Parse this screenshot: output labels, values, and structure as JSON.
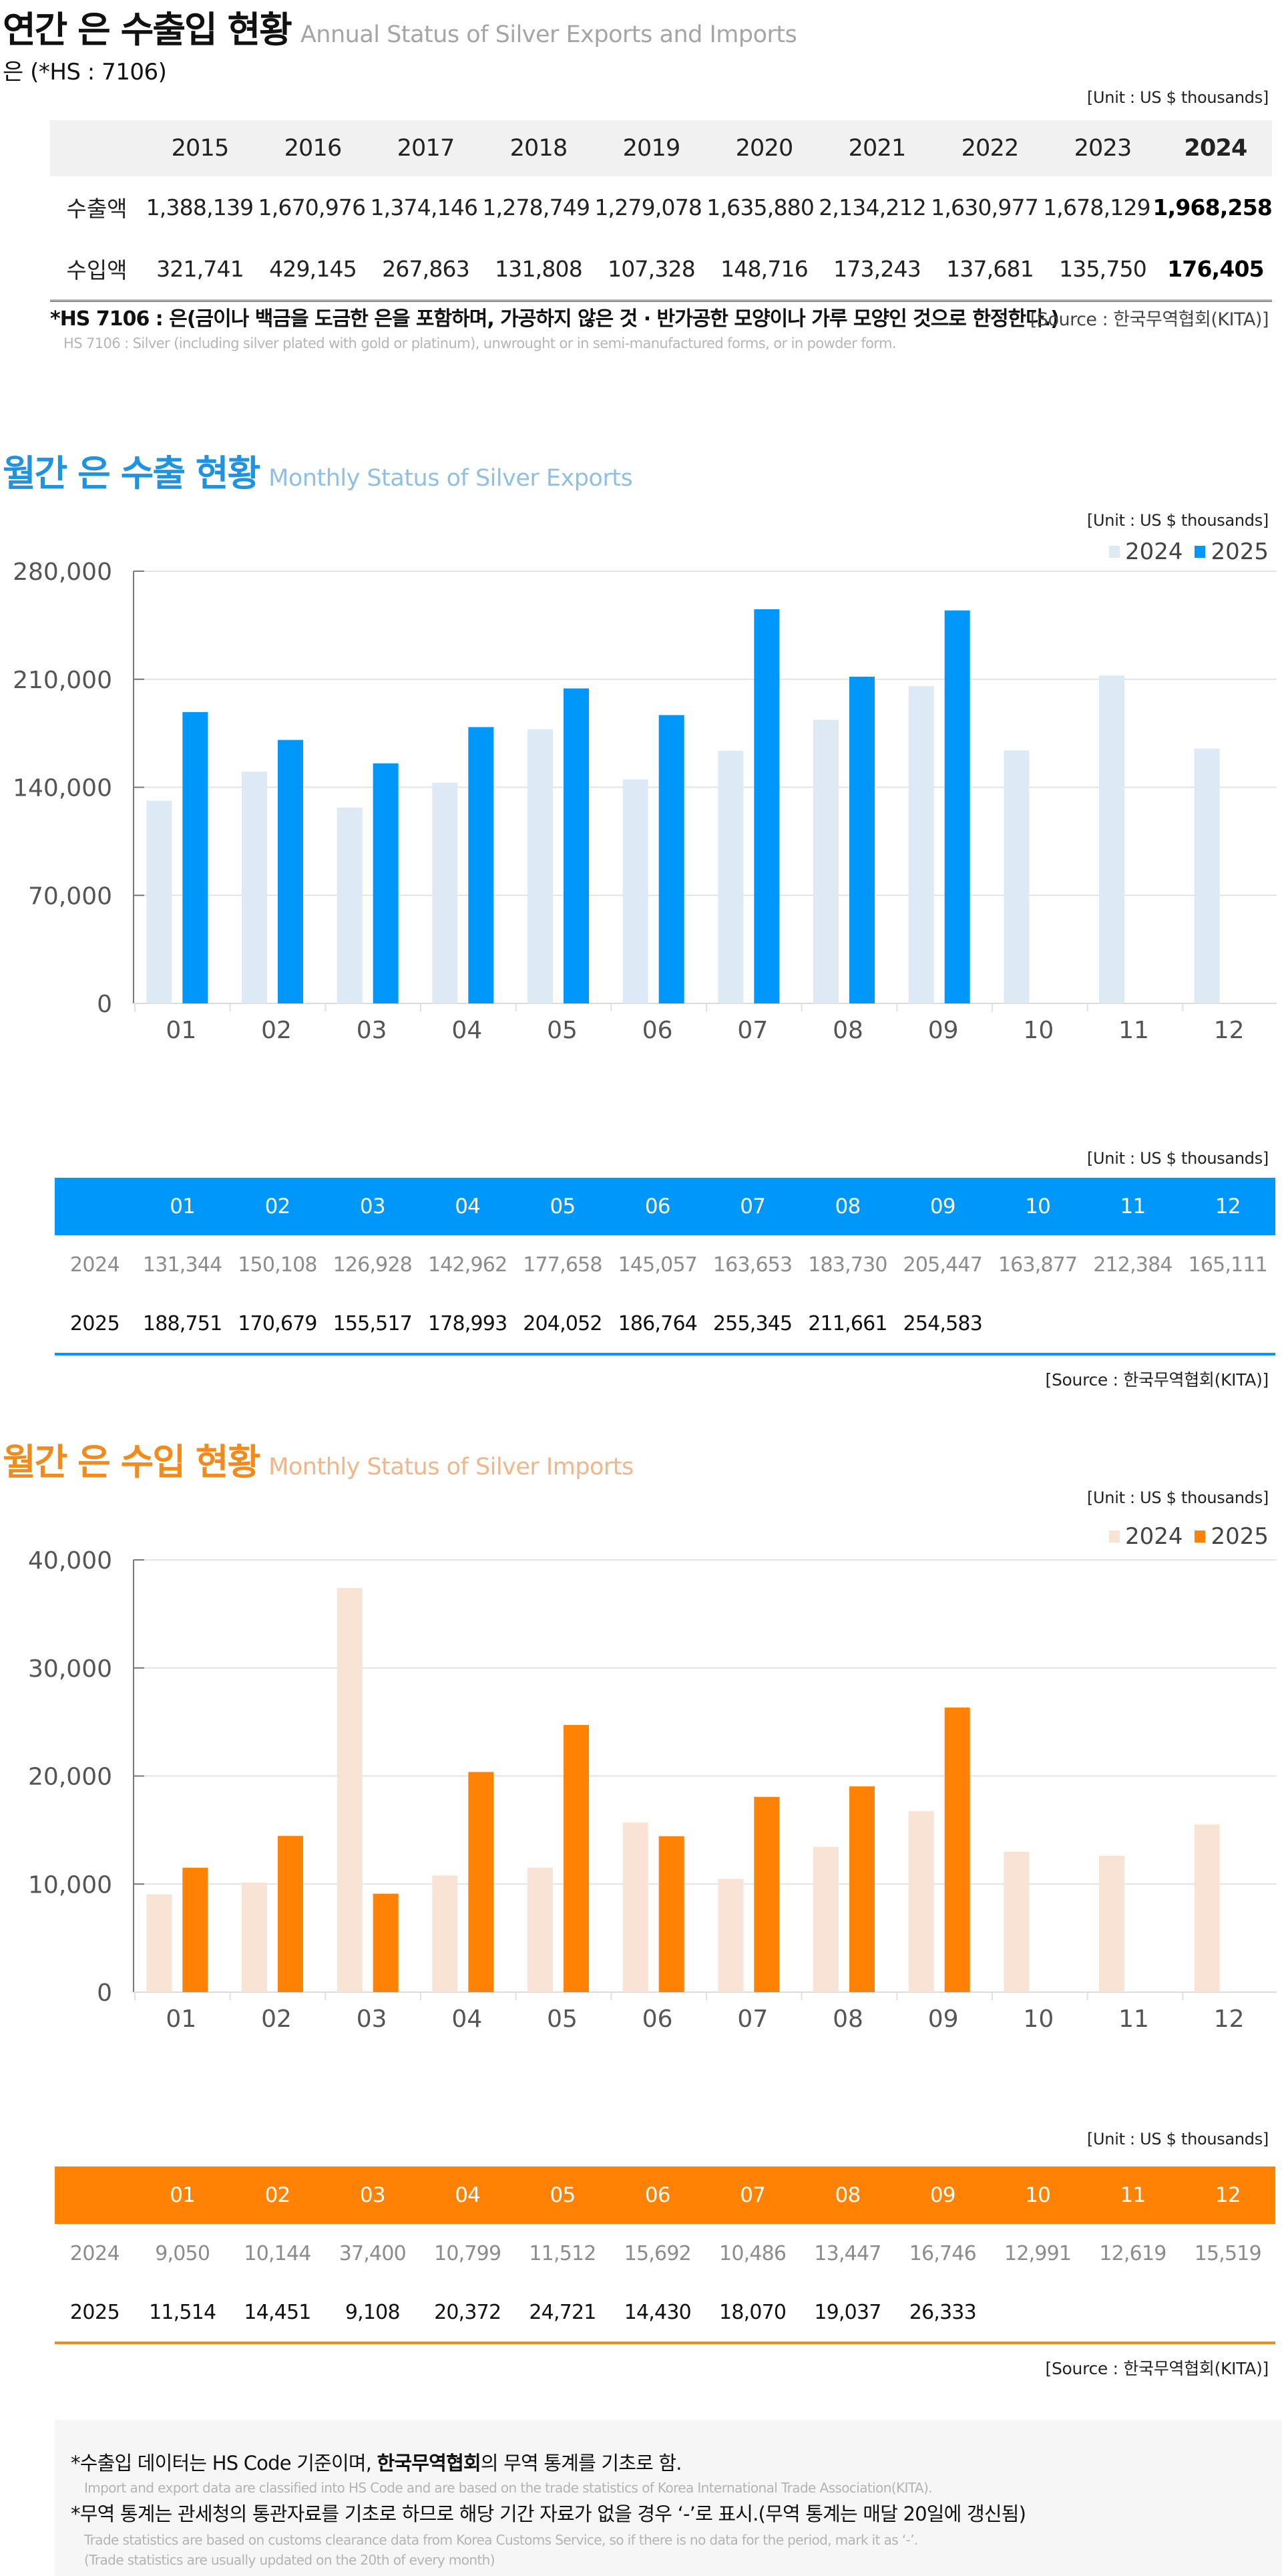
{
  "annual": {
    "title_ko": "연간 은 수출입 현황",
    "title_en": "Annual Status of Silver Exports and Imports",
    "subtitle": "은 (*HS : 7106)",
    "unit": "[Unit : US $ thousands]",
    "years": [
      "2015",
      "2016",
      "2017",
      "2018",
      "2019",
      "2020",
      "2021",
      "2022",
      "2023",
      "2024"
    ],
    "rows": [
      {
        "label": "수출액",
        "values": [
          "1,388,139",
          "1,670,976",
          "1,374,146",
          "1,278,749",
          "1,279,078",
          "1,635,880",
          "2,134,212",
          "1,630,977",
          "1,678,129",
          "1,968,258"
        ]
      },
      {
        "label": "수입액",
        "values": [
          "321,741",
          "429,145",
          "267,863",
          "131,808",
          "107,328",
          "148,716",
          "173,243",
          "137,681",
          "135,750",
          "176,405"
        ]
      }
    ],
    "note_ko": "*HS 7106 : 은(금이나 백금을 도금한 은을 포함하며, 가공하지 않은 것 · 반가공한 모양이나 가루 모양인 것으로 한정한다.)",
    "note_en": "HS 7106 : Silver (including silver plated with gold or platinum), unwrought or in semi-manufactured forms, or in powder form.",
    "source": "[Source : 한국무역협회(KITA)]"
  },
  "exports": {
    "title_ko": "월간 은 수출 현황",
    "title_en": "Monthly Status of Silver Exports",
    "unit": "[Unit : US $ thousands]",
    "table_unit": "[Unit : US $ thousands]",
    "source": "[Source : 한국무역협회(KITA)]",
    "months": [
      "01",
      "02",
      "03",
      "04",
      "05",
      "06",
      "07",
      "08",
      "09",
      "10",
      "11",
      "12"
    ],
    "table_rows": [
      {
        "label": "2024",
        "values": [
          "131,344",
          "150,108",
          "126,928",
          "142,962",
          "177,658",
          "145,057",
          "163,653",
          "183,730",
          "205,447",
          "163,877",
          "212,384",
          "165,111"
        ]
      },
      {
        "label": "2025",
        "values": [
          "188,751",
          "170,679",
          "155,517",
          "178,993",
          "204,052",
          "186,764",
          "255,345",
          "211,661",
          "254,583",
          "",
          "",
          ""
        ]
      }
    ],
    "colors": {
      "accent": "#0097fa",
      "light": "#dde9f5",
      "header_bg": "#0097fa"
    }
  },
  "imports": {
    "title_ko": "월간 은 수입 현황",
    "title_en": "Monthly Status of Silver Imports",
    "unit": "[Unit : US $ thousands]",
    "table_unit": "[Unit : US $ thousands]",
    "source": "[Source : 한국무역협회(KITA)]",
    "months": [
      "01",
      "02",
      "03",
      "04",
      "05",
      "06",
      "07",
      "08",
      "09",
      "10",
      "11",
      "12"
    ],
    "table_rows": [
      {
        "label": "2024",
        "values": [
          "9,050",
          "10,144",
          "37,400",
          "10,799",
          "11,512",
          "15,692",
          "10,486",
          "13,447",
          "16,746",
          "12,991",
          "12,619",
          "15,519"
        ]
      },
      {
        "label": "2025",
        "values": [
          "11,514",
          "14,451",
          "9,108",
          "20,372",
          "24,721",
          "14,430",
          "18,070",
          "19,037",
          "26,333",
          "",
          "",
          ""
        ]
      }
    ],
    "colors": {
      "accent": "#ff8205",
      "light": "#f9e3d5",
      "header_bg": "#ff8205"
    }
  },
  "footer": {
    "line1_pre": "*수출입 데이터는 HS Code 기준이며, ",
    "line1_bold": "한국무역협회",
    "line1_post": "의 무역 통계를 기초로 함.",
    "line1_en": "Import and export data are classified into HS Code and are based on the trade statistics of Korea International  Trade Association(KITA).",
    "line2": "*무역 통계는 관세청의  통관자료를 기초로 하므로 해당 기간 자료가 없을 경우 ‘-’로 표시.(무역 통계는 매달 20일에 갱신됨)",
    "line2_en": "Trade statistics are based on customs clearance data from Korea Customs Service, so if there is no data for the period, mark it as ‘-’.",
    "line3_en": "(Trade statistics are usually updated on the 20th of every month)"
  },
  "chart_data": [
    {
      "type": "bar",
      "title": "월간 은 수출 현황 Monthly Status of Silver Exports",
      "xlabel": "",
      "ylabel": "",
      "categories": [
        "01",
        "02",
        "03",
        "04",
        "05",
        "06",
        "07",
        "08",
        "09",
        "10",
        "11",
        "12"
      ],
      "series": [
        {
          "name": "2024",
          "color": "#dde9f5",
          "values": [
            131344,
            150108,
            126928,
            142962,
            177658,
            145057,
            163653,
            183730,
            205447,
            163877,
            212384,
            165111
          ]
        },
        {
          "name": "2025",
          "color": "#0097fa",
          "values": [
            188751,
            170679,
            155517,
            178993,
            204052,
            186764,
            255345,
            211661,
            254583,
            null,
            null,
            null
          ]
        }
      ],
      "ylim": [
        0,
        280000
      ],
      "yticks": [
        0,
        70000,
        140000,
        210000,
        280000
      ],
      "ytick_labels": [
        "0",
        "70,000",
        "140,000",
        "210,000",
        "280,000"
      ],
      "grid": true,
      "legend": "top-right"
    },
    {
      "type": "bar",
      "title": "월간 은 수입 현황 Monthly Status of Silver Imports",
      "xlabel": "",
      "ylabel": "",
      "categories": [
        "01",
        "02",
        "03",
        "04",
        "05",
        "06",
        "07",
        "08",
        "09",
        "10",
        "11",
        "12"
      ],
      "series": [
        {
          "name": "2024",
          "color": "#f9e3d5",
          "values": [
            9050,
            10144,
            37400,
            10799,
            11512,
            15692,
            10486,
            13447,
            16746,
            12991,
            12619,
            15519
          ]
        },
        {
          "name": "2025",
          "color": "#ff8205",
          "values": [
            11514,
            14451,
            9108,
            20372,
            24721,
            14430,
            18070,
            19037,
            26333,
            null,
            null,
            null
          ]
        }
      ],
      "ylim": [
        0,
        40000
      ],
      "yticks": [
        0,
        10000,
        20000,
        30000,
        40000
      ],
      "ytick_labels": [
        "0",
        "10,000",
        "20,000",
        "30,000",
        "40,000"
      ],
      "grid": true,
      "legend": "top-right"
    }
  ]
}
